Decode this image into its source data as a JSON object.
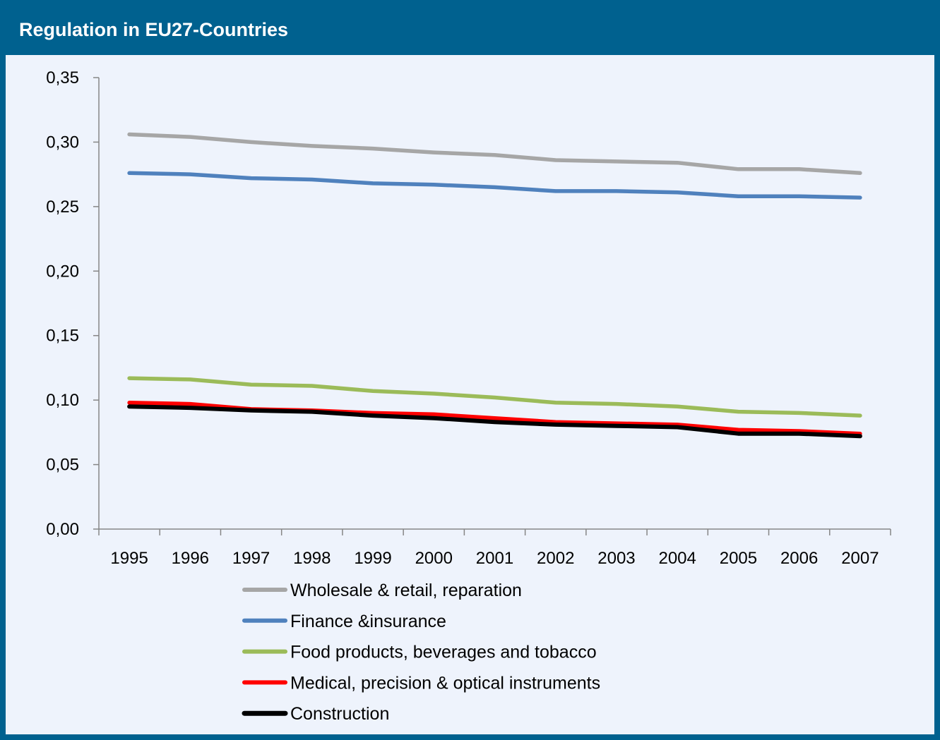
{
  "header": {
    "title": "Regulation in EU27-Countries"
  },
  "chart_data": {
    "type": "line",
    "title": "Regulation in EU27-Countries",
    "xlabel": "",
    "ylabel": "",
    "x": [
      "1995",
      "1996",
      "1997",
      "1998",
      "1999",
      "2000",
      "2001",
      "2002",
      "2003",
      "2004",
      "2005",
      "2006",
      "2007"
    ],
    "ylim": [
      0,
      0.35
    ],
    "yticks": [
      "0,00",
      "0,05",
      "0,10",
      "0,15",
      "0,20",
      "0,25",
      "0,30",
      "0,35"
    ],
    "grid": false,
    "legend_position": "bottom",
    "series": [
      {
        "name": "Wholesale & retail, reparation",
        "color": "#a6a6a6",
        "values": [
          0.306,
          0.304,
          0.3,
          0.297,
          0.295,
          0.292,
          0.29,
          0.286,
          0.285,
          0.284,
          0.279,
          0.279,
          0.276
        ]
      },
      {
        "name": "Finance &insurance",
        "color": "#4f81bd",
        "values": [
          0.276,
          0.275,
          0.272,
          0.271,
          0.268,
          0.267,
          0.265,
          0.262,
          0.262,
          0.261,
          0.258,
          0.258,
          0.257
        ]
      },
      {
        "name": "Food products, beverages and tobacco",
        "color": "#9bbb59",
        "values": [
          0.117,
          0.116,
          0.112,
          0.111,
          0.107,
          0.105,
          0.102,
          0.098,
          0.097,
          0.095,
          0.091,
          0.09,
          0.088
        ]
      },
      {
        "name": "Medical, precision & optical instruments",
        "color": "#ff0000",
        "values": [
          0.098,
          0.097,
          0.093,
          0.092,
          0.09,
          0.089,
          0.086,
          0.083,
          0.082,
          0.081,
          0.077,
          0.076,
          0.074
        ]
      },
      {
        "name": "Construction",
        "color": "#000000",
        "values": [
          0.095,
          0.094,
          0.092,
          0.091,
          0.088,
          0.086,
          0.083,
          0.081,
          0.08,
          0.079,
          0.074,
          0.074,
          0.072
        ]
      }
    ]
  }
}
